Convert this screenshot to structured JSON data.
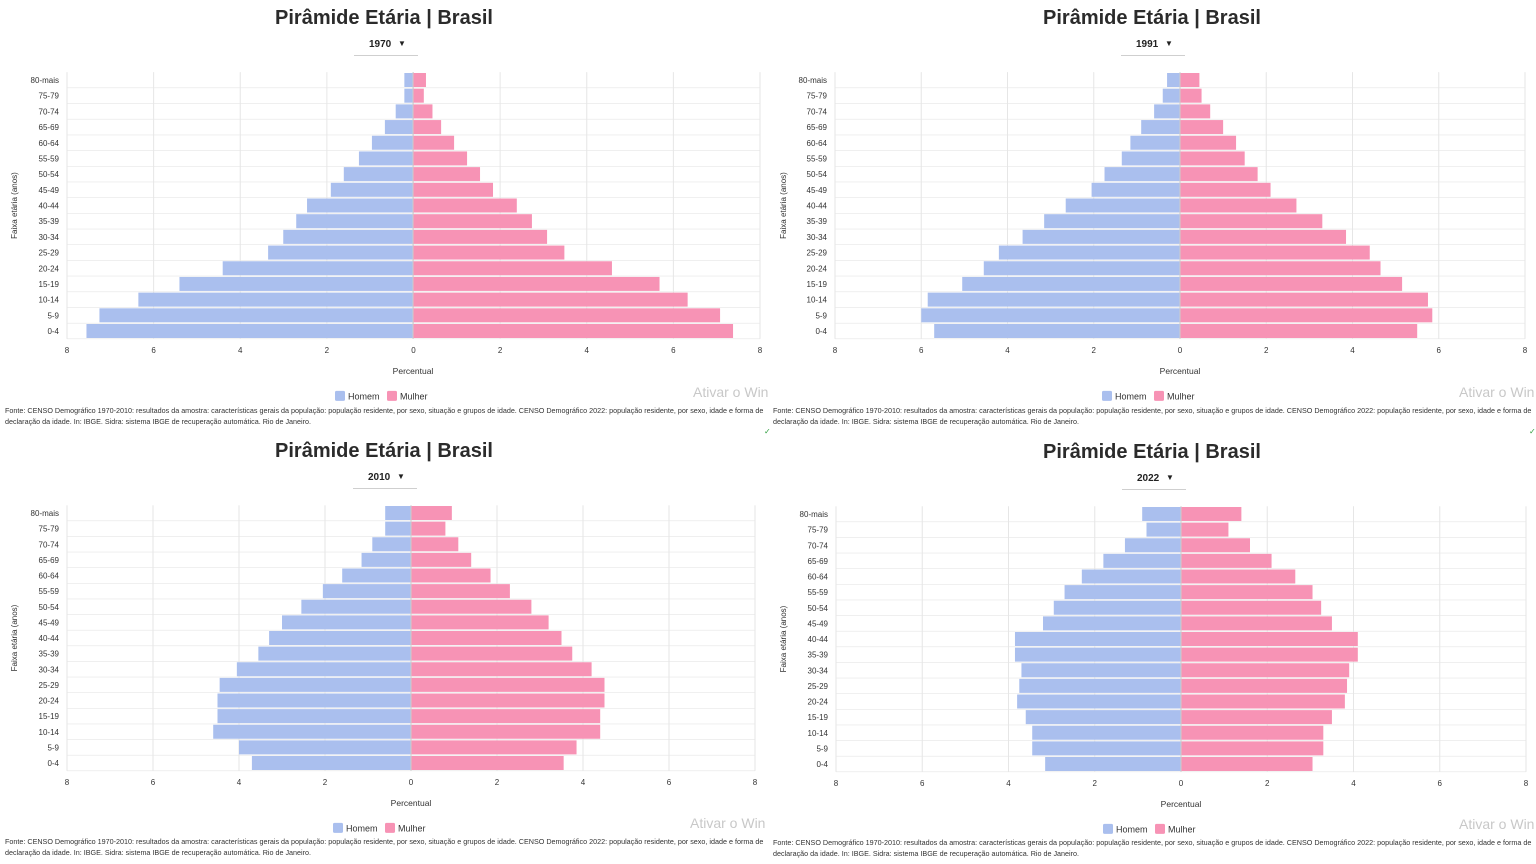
{
  "watermark": "Ativar o Win",
  "source": "Fonte: CENSO Demográfico 1970-2010: resultados da amostra: características gerais da população: população residente, por sexo, situação e grupos de idade. CENSO Demográfico 2022: população residente, por sexo, idade e forma de declaração da idade. In: IBGE. Sidra: sistema IBGE de recuperação automática. Rio de Janeiro.",
  "colors": {
    "homem": "#aabfee",
    "mulher": "#f793b5",
    "grid": "#e6e6e6",
    "text": "#333333"
  },
  "chart_data": [
    {
      "type": "bar",
      "title": "Pirâmide Etária | Brasil",
      "selected_year": "1970",
      "xlabel": "Percentual",
      "ylabel": "Faixa etária (anos)",
      "xlim": [
        -8,
        8
      ],
      "xticks": [
        "8",
        "6",
        "4",
        "2",
        "0",
        "2",
        "4",
        "6",
        "8"
      ],
      "categories": [
        "80-mais",
        "75-79",
        "70-74",
        "65-69",
        "60-64",
        "55-59",
        "50-54",
        "45-49",
        "40-44",
        "35-39",
        "30-34",
        "25-29",
        "20-24",
        "15-19",
        "10-14",
        "5-9",
        "0-4"
      ],
      "legend": "bottom-center",
      "series": [
        {
          "name": "Homem",
          "values": [
            0.2,
            0.2,
            0.4,
            0.65,
            0.95,
            1.25,
            1.6,
            1.9,
            2.45,
            2.7,
            3.0,
            3.35,
            4.4,
            5.4,
            6.35,
            7.25,
            7.55
          ]
        },
        {
          "name": "Mulher",
          "values": [
            0.3,
            0.25,
            0.45,
            0.65,
            0.95,
            1.25,
            1.55,
            1.85,
            2.4,
            2.75,
            3.1,
            3.5,
            4.6,
            5.7,
            6.35,
            7.1,
            7.4
          ]
        }
      ]
    },
    {
      "type": "bar",
      "title": "Pirâmide Etária | Brasil",
      "selected_year": "1991",
      "xlabel": "Percentual",
      "ylabel": "Faixa etária (anos)",
      "xlim": [
        -8,
        8
      ],
      "xticks": [
        "8",
        "6",
        "4",
        "2",
        "0",
        "2",
        "4",
        "6",
        "8"
      ],
      "categories": [
        "80-mais",
        "75-79",
        "70-74",
        "65-69",
        "60-64",
        "55-59",
        "50-54",
        "45-49",
        "40-44",
        "35-39",
        "30-34",
        "25-29",
        "20-24",
        "15-19",
        "10-14",
        "5-9",
        "0-4"
      ],
      "legend": "bottom-center",
      "series": [
        {
          "name": "Homem",
          "values": [
            0.3,
            0.4,
            0.6,
            0.9,
            1.15,
            1.35,
            1.75,
            2.05,
            2.65,
            3.15,
            3.65,
            4.2,
            4.55,
            5.05,
            5.85,
            6.0,
            5.7
          ]
        },
        {
          "name": "Mulher",
          "values": [
            0.45,
            0.5,
            0.7,
            1.0,
            1.3,
            1.5,
            1.8,
            2.1,
            2.7,
            3.3,
            3.85,
            4.4,
            4.65,
            5.15,
            5.75,
            5.85,
            5.5
          ]
        }
      ]
    },
    {
      "type": "bar",
      "title": "Pirâmide Etária | Brasil",
      "selected_year": "2010",
      "xlabel": "Percentual",
      "ylabel": "Faixa etária (anos)",
      "xlim": [
        -8,
        8
      ],
      "xticks": [
        "8",
        "6",
        "4",
        "2",
        "0",
        "2",
        "4",
        "6",
        "8"
      ],
      "categories": [
        "80-mais",
        "75-79",
        "70-74",
        "65-69",
        "60-64",
        "55-59",
        "50-54",
        "45-49",
        "40-44",
        "35-39",
        "30-34",
        "25-29",
        "20-24",
        "15-19",
        "10-14",
        "5-9",
        "0-4"
      ],
      "legend": "bottom-center",
      "series": [
        {
          "name": "Homem",
          "values": [
            0.6,
            0.6,
            0.9,
            1.15,
            1.6,
            2.05,
            2.55,
            3.0,
            3.3,
            3.55,
            4.05,
            4.45,
            4.5,
            4.5,
            4.6,
            4.0,
            3.7
          ]
        },
        {
          "name": "Mulher",
          "values": [
            0.95,
            0.8,
            1.1,
            1.4,
            1.85,
            2.3,
            2.8,
            3.2,
            3.5,
            3.75,
            4.2,
            4.5,
            4.5,
            4.4,
            4.4,
            3.85,
            3.55
          ]
        }
      ]
    },
    {
      "type": "bar",
      "title": "Pirâmide Etária | Brasil",
      "selected_year": "2022",
      "xlabel": "Percentual",
      "ylabel": "Faixa etária (anos)",
      "xlim": [
        -8,
        8
      ],
      "xticks": [
        "8",
        "6",
        "4",
        "2",
        "0",
        "2",
        "4",
        "6",
        "8"
      ],
      "categories": [
        "80-mais",
        "75-79",
        "70-74",
        "65-69",
        "60-64",
        "55-59",
        "50-54",
        "45-49",
        "40-44",
        "35-39",
        "30-34",
        "25-29",
        "20-24",
        "15-19",
        "10-14",
        "5-9",
        "0-4"
      ],
      "legend": "bottom-center",
      "series": [
        {
          "name": "Homem",
          "values": [
            0.9,
            0.8,
            1.3,
            1.8,
            2.3,
            2.7,
            2.95,
            3.2,
            3.85,
            3.85,
            3.7,
            3.75,
            3.8,
            3.6,
            3.45,
            3.45,
            3.15
          ]
        },
        {
          "name": "Mulher",
          "values": [
            1.4,
            1.1,
            1.6,
            2.1,
            2.65,
            3.05,
            3.25,
            3.5,
            4.1,
            4.1,
            3.9,
            3.85,
            3.8,
            3.5,
            3.3,
            3.3,
            3.05
          ]
        }
      ]
    }
  ]
}
